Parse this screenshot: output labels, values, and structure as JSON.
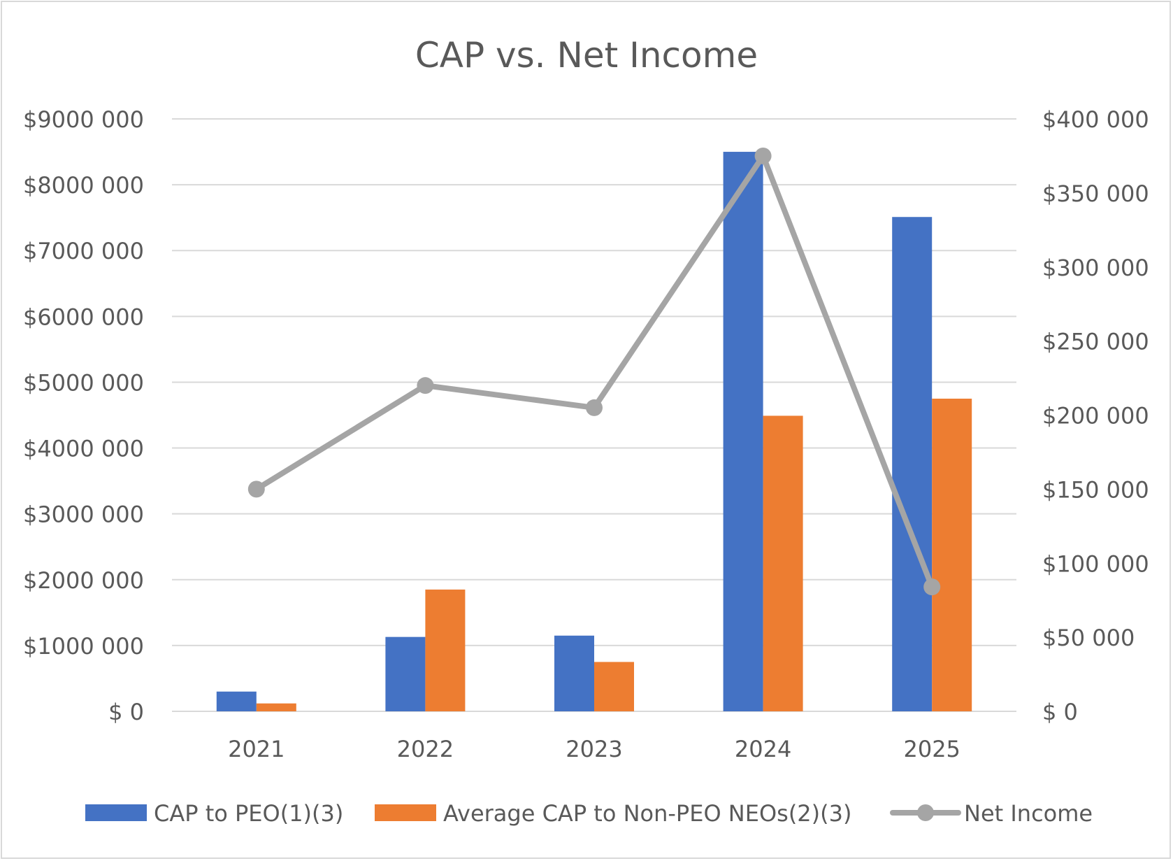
{
  "chart_data": {
    "type": "bar",
    "title": "CAP vs. Net Income",
    "categories": [
      "2021",
      "2022",
      "2023",
      "2024",
      "2025"
    ],
    "series": [
      {
        "name": "CAP to PEO(1)(3)",
        "type": "bar",
        "axis": "left",
        "color": "#4472c4",
        "values": [
          300000,
          1130000,
          1150000,
          8500000,
          7510000
        ]
      },
      {
        "name": "Average CAP to Non-PEO NEOs(2)(3)",
        "type": "bar",
        "axis": "left",
        "color": "#ed7d31",
        "values": [
          120000,
          1850000,
          750000,
          4490000,
          4750000
        ]
      },
      {
        "name": "Net Income",
        "type": "line",
        "axis": "right",
        "color": "#a5a5a5",
        "values": [
          150000,
          220000,
          205000,
          375000,
          84000
        ]
      }
    ],
    "left_axis": {
      "ylim": [
        0,
        9000000
      ],
      "ticks": [
        0,
        1000000,
        2000000,
        3000000,
        4000000,
        5000000,
        6000000,
        7000000,
        8000000,
        9000000
      ],
      "tick_labels": [
        "$ 0",
        "$1000 000",
        "$2000 000",
        "$3000 000",
        "$4000 000",
        "$5000 000",
        "$6000 000",
        "$7000 000",
        "$8000 000",
        "$9000 000"
      ]
    },
    "right_axis": {
      "ylim": [
        0,
        400000
      ],
      "ticks": [
        0,
        50000,
        100000,
        150000,
        200000,
        250000,
        300000,
        350000,
        400000
      ],
      "tick_labels": [
        "$ 0",
        "$50 000",
        "$100 000",
        "$150 000",
        "$200 000",
        "$250 000",
        "$300 000",
        "$350 000",
        "$400 000"
      ]
    },
    "grid": true,
    "legend_position": "bottom",
    "colors": {
      "gridline": "#d9d9d9",
      "text": "#595959"
    }
  }
}
